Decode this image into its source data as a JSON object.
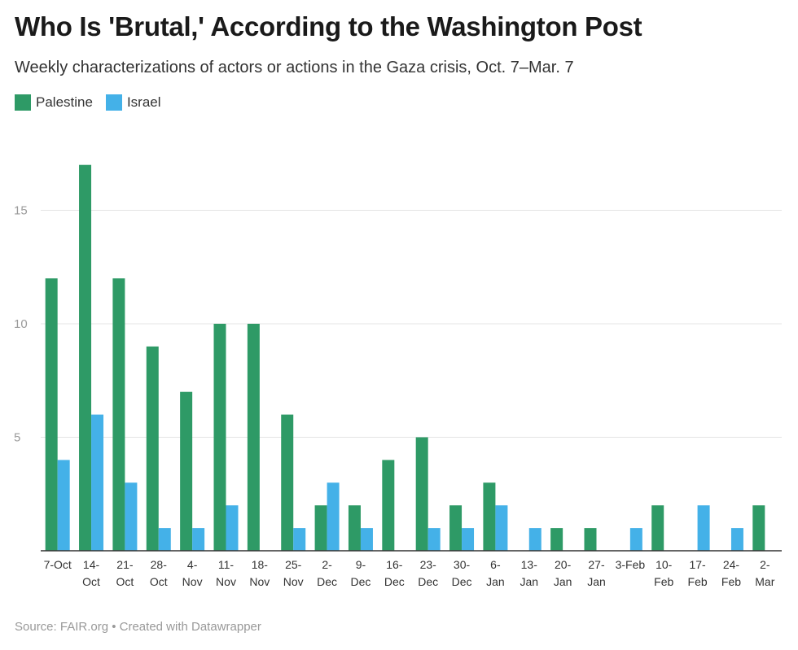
{
  "header": {
    "title": "Who Is 'Brutal,' According to the Washington Post",
    "subtitle": "Weekly characterizations of actors or actions in the Gaza crisis, Oct. 7–Mar. 7"
  },
  "footer": {
    "source": "Source: FAIR.org • Created with Datawrapper"
  },
  "colors": {
    "palestine": "#2e9a66",
    "israel": "#44b1e8"
  },
  "chart_data": {
    "type": "bar",
    "title": "Who Is 'Brutal,' According to the Washington Post",
    "subtitle": "Weekly characterizations of actors or actions in the Gaza crisis, Oct. 7–Mar. 7",
    "xlabel": "",
    "ylabel": "",
    "ylim": [
      0,
      18
    ],
    "yticks": [
      5,
      10,
      15
    ],
    "grid": true,
    "legend_position": "top-left",
    "categories": [
      [
        "7-Oct"
      ],
      [
        "14-",
        "Oct"
      ],
      [
        "21-",
        "Oct"
      ],
      [
        "28-",
        "Oct"
      ],
      [
        "4-",
        "Nov"
      ],
      [
        "11-",
        "Nov"
      ],
      [
        "18-",
        "Nov"
      ],
      [
        "25-",
        "Nov"
      ],
      [
        "2-",
        "Dec"
      ],
      [
        "9-",
        "Dec"
      ],
      [
        "16-",
        "Dec"
      ],
      [
        "23-",
        "Dec"
      ],
      [
        "30-",
        "Dec"
      ],
      [
        "6-",
        "Jan"
      ],
      [
        "13-",
        "Jan"
      ],
      [
        "20-",
        "Jan"
      ],
      [
        "27-",
        "Jan"
      ],
      [
        "3-Feb"
      ],
      [
        "10-",
        "Feb"
      ],
      [
        "17-",
        "Feb"
      ],
      [
        "24-",
        "Feb"
      ],
      [
        "2-",
        "Mar"
      ]
    ],
    "series": [
      {
        "name": "Palestine",
        "color": "#2e9a66",
        "values": [
          12,
          17,
          12,
          9,
          7,
          10,
          10,
          6,
          2,
          2,
          4,
          5,
          2,
          3,
          0,
          1,
          1,
          0,
          2,
          0,
          0,
          2
        ]
      },
      {
        "name": "Israel",
        "color": "#44b1e8",
        "values": [
          4,
          6,
          3,
          1,
          1,
          2,
          0,
          1,
          3,
          1,
          0,
          1,
          1,
          2,
          1,
          0,
          0,
          1,
          0,
          2,
          1,
          0
        ]
      }
    ]
  }
}
